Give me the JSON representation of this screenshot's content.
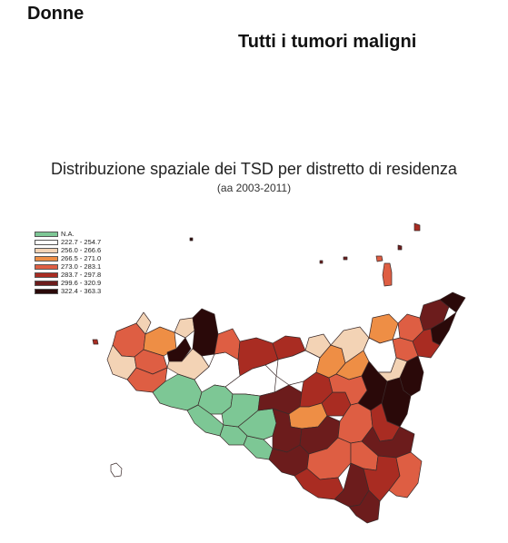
{
  "header": {
    "group": "Donne",
    "tumor": "Tutti i tumori maligni"
  },
  "map": {
    "title": "Distribuzione spaziale dei TSD per distretto di residenza",
    "subtitle": "(aa 2003-2011)",
    "legend": [
      {
        "label": "N.A.",
        "color": "#7dc795"
      },
      {
        "label": "222.7 - 254.7",
        "color": "#ffffff"
      },
      {
        "label": "256.0 - 266.6",
        "color": "#f3d3b5"
      },
      {
        "label": "266.5 - 271.0",
        "color": "#ee8e45"
      },
      {
        "label": "273.0 - 283.1",
        "color": "#de5e43"
      },
      {
        "label": "283.7 - 297.8",
        "color": "#a92c22"
      },
      {
        "label": "299.6 - 320.9",
        "color": "#6c1c1c"
      },
      {
        "label": "322.4 - 363.3",
        "color": "#2a0909"
      }
    ]
  }
}
